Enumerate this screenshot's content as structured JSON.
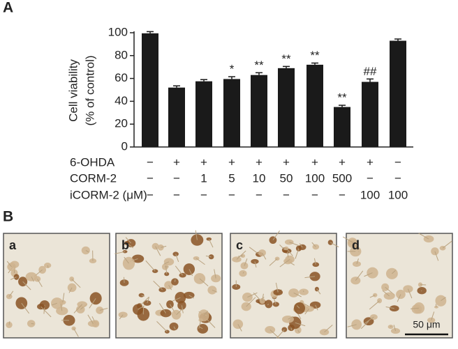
{
  "chart_data": {
    "type": "bar",
    "panel_label": "A",
    "ylabel": [
      "Cell viability",
      "(% of control)"
    ],
    "values": [
      99.5,
      52,
      57.5,
      59.5,
      63,
      69,
      72,
      35,
      57,
      93
    ],
    "errors": [
      1.5,
      1.5,
      1.5,
      2,
      2,
      1.5,
      1.5,
      1.5,
      2.5,
      1.5
    ],
    "annotations": [
      null,
      null,
      null,
      "*",
      "**",
      "**",
      "**",
      "**",
      "##",
      null
    ],
    "color": "#1a1a1a",
    "ylim": [
      0,
      100
    ],
    "yticks": [
      0,
      20,
      40,
      60,
      80,
      100
    ],
    "treatments": [
      {
        "name": "6-OHDA",
        "cells": [
          "−",
          "+",
          "+",
          "+",
          "+",
          "+",
          "+",
          "+",
          "+",
          "−"
        ]
      },
      {
        "name": "CORM-2",
        "cells": [
          "−",
          "−",
          "1",
          "5",
          "10",
          "50",
          "100",
          "500",
          "−",
          "−"
        ]
      },
      {
        "name": "iCORM-2 (μM)",
        "cells": [
          "−",
          "−",
          "−",
          "−",
          "−",
          "−",
          "−",
          "−",
          "100",
          "100"
        ]
      }
    ]
  },
  "figure_b": {
    "panel_label": "B",
    "images": [
      "a",
      "b",
      "c",
      "d"
    ],
    "scale_bar": "50 μm"
  }
}
